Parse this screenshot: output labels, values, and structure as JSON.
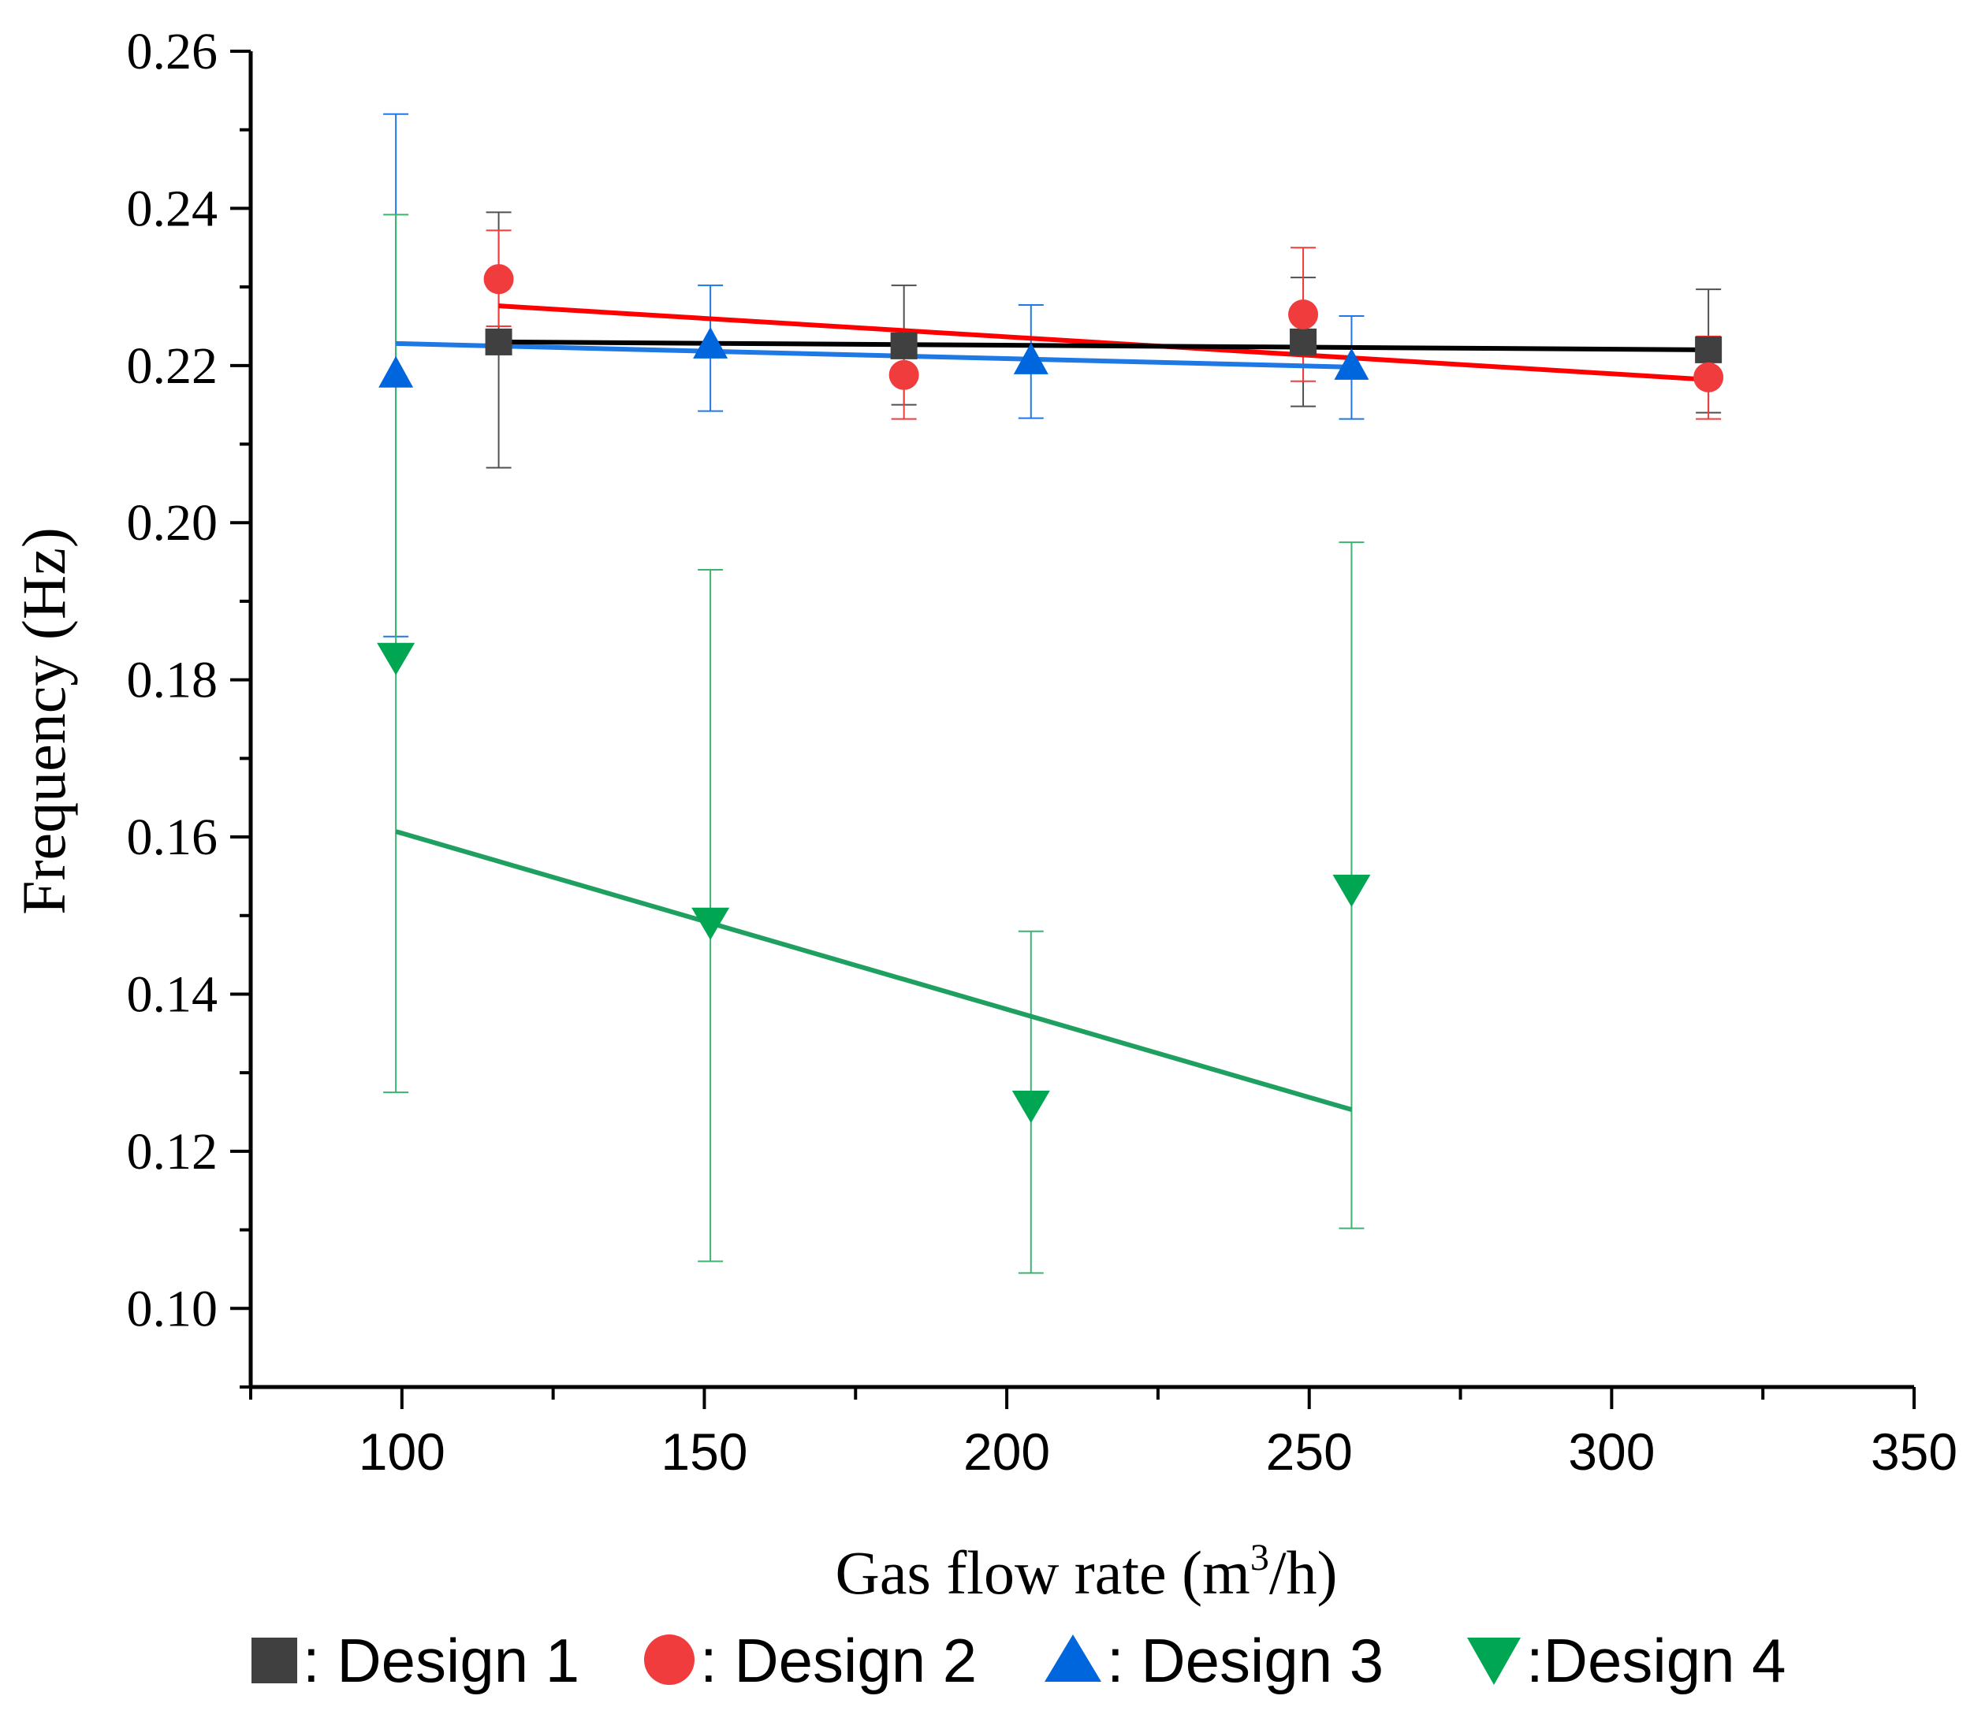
{
  "chart_data": {
    "type": "scatter",
    "title": "",
    "xlabel": "Gas flow rate (m",
    "xlabel_sup": "3",
    "xlabel_tail": "/h)",
    "ylabel": "Frequency (Hz)",
    "xlim": [
      75,
      350
    ],
    "ylim": [
      0.09,
      0.26
    ],
    "xticks": [
      100,
      150,
      200,
      250,
      300,
      350
    ],
    "xtick_labels": [
      "100",
      "150",
      "200",
      "250",
      "300",
      "350"
    ],
    "yticks": [
      0.1,
      0.12,
      0.14,
      0.16,
      0.18,
      0.2,
      0.22,
      0.24,
      0.26
    ],
    "ytick_labels": [
      "0.10",
      "0.12",
      "0.14",
      "0.16",
      "0.18",
      "0.20",
      "0.22",
      "0.24",
      "0.26"
    ],
    "x_minor_step": 25,
    "y_minor_step": 0.01,
    "legend_position": "bottom",
    "series": [
      {
        "name": "Design 1",
        "legend_label": ": Design 1",
        "marker": "square",
        "color": "#404040",
        "errorbar_color": "#505050",
        "fit_color": "#000000",
        "points": [
          {
            "x": 116,
            "y": 0.223,
            "lo": 0.207,
            "hi": 0.2395
          },
          {
            "x": 183,
            "y": 0.2225,
            "lo": 0.215,
            "hi": 0.2302
          },
          {
            "x": 249,
            "y": 0.223,
            "lo": 0.2148,
            "hi": 0.2312
          },
          {
            "x": 316,
            "y": 0.222,
            "lo": 0.214,
            "hi": 0.2297
          }
        ],
        "fit": [
          {
            "x": 116,
            "y": 0.223
          },
          {
            "x": 316,
            "y": 0.222
          }
        ]
      },
      {
        "name": "Design 2",
        "legend_label": ": Design 2",
        "marker": "circle",
        "color": "#F03C3C",
        "errorbar_color": "#F03C3C",
        "fit_color": "#FF0000",
        "points": [
          {
            "x": 116,
            "y": 0.231,
            "lo": 0.225,
            "hi": 0.2372
          },
          {
            "x": 183,
            "y": 0.2188,
            "lo": 0.2132,
            "hi": 0.2245
          },
          {
            "x": 249,
            "y": 0.2265,
            "lo": 0.218,
            "hi": 0.235
          },
          {
            "x": 316,
            "y": 0.2185,
            "lo": 0.2132,
            "hi": 0.2237
          }
        ],
        "fit": [
          {
            "x": 116,
            "y": 0.2276
          },
          {
            "x": 316,
            "y": 0.2182
          }
        ]
      },
      {
        "name": "Design 3",
        "legend_label": ": Design 3",
        "marker": "triangle-up",
        "color": "#0066DD",
        "errorbar_color": "#1E78E6",
        "fit_color": "#1E78E6",
        "points": [
          {
            "x": 99,
            "y": 0.2188,
            "lo": 0.1855,
            "hi": 0.252
          },
          {
            "x": 151,
            "y": 0.2225,
            "lo": 0.2142,
            "hi": 0.2302
          },
          {
            "x": 204,
            "y": 0.2205,
            "lo": 0.2133,
            "hi": 0.2277
          },
          {
            "x": 257,
            "y": 0.2198,
            "lo": 0.2132,
            "hi": 0.2263
          }
        ],
        "fit": [
          {
            "x": 99,
            "y": 0.2228
          },
          {
            "x": 257,
            "y": 0.2198
          }
        ]
      },
      {
        "name": "Design 4",
        "legend_label": ":Design 4",
        "marker": "triangle-down",
        "color": "#00A651",
        "errorbar_color": "#3CB371",
        "fit_color": "#20A060",
        "points": [
          {
            "x": 99,
            "y": 0.183,
            "lo": 0.1275,
            "hi": 0.2392
          },
          {
            "x": 151,
            "y": 0.1493,
            "lo": 0.106,
            "hi": 0.194
          },
          {
            "x": 204,
            "y": 0.126,
            "lo": 0.1045,
            "hi": 0.148
          },
          {
            "x": 257,
            "y": 0.1535,
            "lo": 0.1102,
            "hi": 0.1975
          }
        ],
        "fit": [
          {
            "x": 99,
            "y": 0.1607
          },
          {
            "x": 257,
            "y": 0.1253
          }
        ]
      }
    ]
  }
}
